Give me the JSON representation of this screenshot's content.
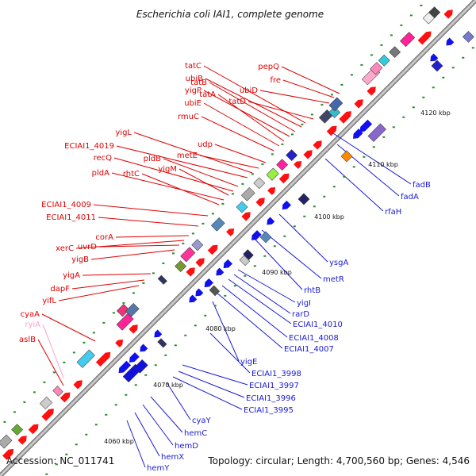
{
  "title": "Escherichia coli IAI1, complete genome",
  "footer": {
    "accession": "Accession: NC_011741",
    "summary": "Topology: circular; Length: 4,700,560 bp; Genes: 4,546"
  },
  "ticks": [
    "4060 kbp",
    "4070 kbp",
    "4080 kbp",
    "4090 kbp",
    "4100 kbp",
    "4110 kbp",
    "4120 kbp"
  ],
  "colors": {
    "forward_label": "#e00000",
    "reverse_label": "#1a1ad6",
    "rna_label": "#ff9ec8",
    "backbone": "#9a9a9a",
    "forward_gene": "#ff1010",
    "reverse_gene": "#1010ee"
  },
  "forward_labels": [
    "pepQ",
    "fre",
    "ubiD",
    "tatD",
    "tatC",
    "ubiB",
    "tatB",
    "yigP",
    "tatA",
    "ubiE",
    "rmuC",
    "udp",
    "metE",
    "yigL",
    "ECIAI1_4019",
    "pldB",
    "recQ",
    "yigM",
    "pldA",
    "rhtC",
    "ECIAI1_4009",
    "ECIAI1_4011",
    "corA",
    "xerC",
    "uvrD",
    "yigB",
    "yigA",
    "dapF",
    "yifL",
    "cyaA",
    "aslB"
  ],
  "rna_labels": [
    "ryiA"
  ],
  "reverse_labels": [
    "fadB",
    "fadA",
    "rfaH",
    "ysgA",
    "metR",
    "rhtB",
    "yigI",
    "rarD",
    "ECIAI1_4010",
    "ECIAI1_4008",
    "ECIAI1_4007",
    "yigE",
    "ECIAI1_3998",
    "ECIAI1_3997",
    "ECIAI1_3996",
    "ECIAI1_3995",
    "cyaY",
    "hemC",
    "hemD",
    "hemX",
    "hemY"
  ]
}
